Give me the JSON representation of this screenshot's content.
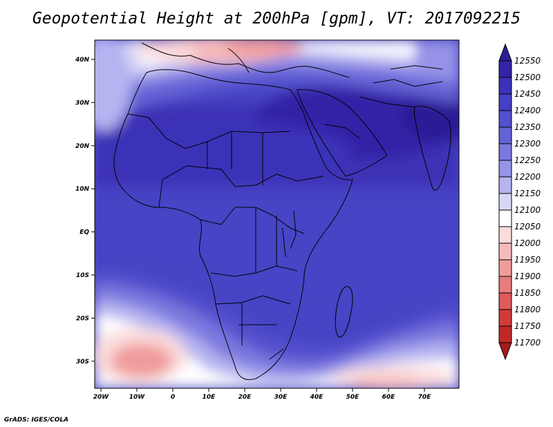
{
  "title": "Geopotential Height at 200hPa [gpm], VT: 2017092215",
  "credit": "GrADS: IGES/COLA",
  "lat_labels": [
    "40N",
    "30N",
    "20N",
    "10N",
    "EQ",
    "10S",
    "20S",
    "30S"
  ],
  "lon_labels": [
    "20W",
    "10W",
    "0",
    "10E",
    "20E",
    "30E",
    "40E",
    "50E",
    "60E",
    "70E"
  ],
  "colorbar": {
    "levels": [
      "12550",
      "12500",
      "12450",
      "12400",
      "12350",
      "12300",
      "12250",
      "12200",
      "12150",
      "12100",
      "12050",
      "12000",
      "11950",
      "11900",
      "11850",
      "11800",
      "11750",
      "11700"
    ],
    "colors": [
      "#2a1f95",
      "#3323a6",
      "#3b32b8",
      "#4540c4",
      "#5450cd",
      "#6562d6",
      "#7b78df",
      "#9693e8",
      "#b5b3f0",
      "#d8d7f8",
      "#ffffff",
      "#fbdcdc",
      "#f6bcbc",
      "#f09c9c",
      "#e87c7c",
      "#df5a5a",
      "#d23a3a",
      "#c02828",
      "#a81a1a"
    ]
  }
}
